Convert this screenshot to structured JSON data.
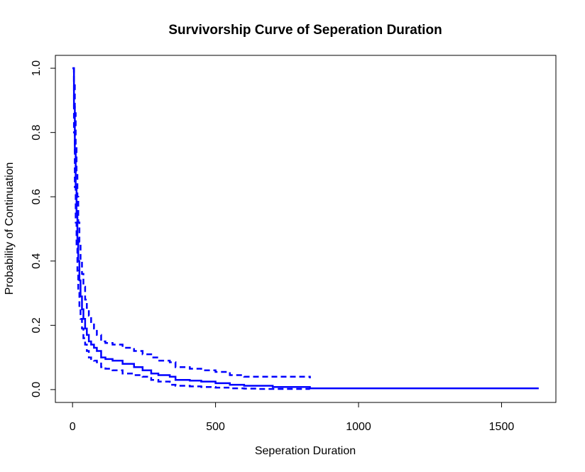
{
  "chart_data": {
    "type": "line",
    "title": "Survivorship Curve of Seperation Duration",
    "xlabel": "Seperation Duration",
    "ylabel": "Probability of Continuation",
    "xlim": [
      -60,
      1690
    ],
    "ylim": [
      -0.04,
      1.04
    ],
    "xticks": [
      0,
      500,
      1000,
      1500
    ],
    "yticks": [
      0.0,
      0.2,
      0.4,
      0.6,
      0.8,
      1.0
    ],
    "xtick_labels": [
      "0",
      "500",
      "1000",
      "1500"
    ],
    "ytick_labels": [
      "0.0",
      "0.2",
      "0.4",
      "0.6",
      "0.8",
      "1.0"
    ],
    "grid": false,
    "legend": "none",
    "color": "#0000ff",
    "series": [
      {
        "style": "solid",
        "step": true,
        "x": [
          0,
          5,
          8,
          11,
          14,
          17,
          20,
          24,
          28,
          33,
          38,
          44,
          50,
          57,
          65,
          75,
          85,
          100,
          115,
          140,
          175,
          215,
          245,
          275,
          300,
          340,
          360,
          410,
          450,
          500,
          550,
          600,
          650,
          700,
          830,
          1000,
          1630
        ],
        "y": [
          1.0,
          0.88,
          0.74,
          0.63,
          0.55,
          0.47,
          0.4,
          0.34,
          0.29,
          0.25,
          0.22,
          0.19,
          0.17,
          0.15,
          0.14,
          0.13,
          0.12,
          0.1,
          0.095,
          0.09,
          0.08,
          0.07,
          0.06,
          0.05,
          0.045,
          0.04,
          0.03,
          0.028,
          0.025,
          0.02,
          0.015,
          0.012,
          0.012,
          0.008,
          0.004,
          0.004,
          0.004
        ]
      },
      {
        "style": "dashed",
        "step": true,
        "x": [
          0,
          5,
          8,
          11,
          14,
          17,
          20,
          24,
          28,
          33,
          38,
          44,
          50,
          57,
          65,
          75,
          85,
          100,
          115,
          140,
          175,
          215,
          245,
          275,
          300,
          340,
          360,
          410,
          450,
          500,
          550,
          600,
          650,
          700,
          830
        ],
        "y": [
          1.0,
          0.96,
          0.86,
          0.76,
          0.68,
          0.6,
          0.52,
          0.46,
          0.4,
          0.36,
          0.32,
          0.28,
          0.25,
          0.23,
          0.21,
          0.19,
          0.17,
          0.15,
          0.145,
          0.14,
          0.13,
          0.12,
          0.11,
          0.1,
          0.09,
          0.085,
          0.07,
          0.065,
          0.06,
          0.055,
          0.045,
          0.04,
          0.04,
          0.04,
          0.035
        ]
      },
      {
        "style": "dashed",
        "step": true,
        "x": [
          0,
          5,
          8,
          11,
          14,
          17,
          20,
          24,
          28,
          33,
          38,
          44,
          50,
          57,
          65,
          75,
          85,
          100,
          115,
          140,
          175,
          215,
          245,
          275,
          300,
          340,
          360,
          410,
          450,
          500,
          550,
          600,
          650,
          700,
          830
        ],
        "y": [
          1.0,
          0.8,
          0.63,
          0.52,
          0.44,
          0.37,
          0.31,
          0.26,
          0.22,
          0.19,
          0.16,
          0.14,
          0.12,
          0.1,
          0.095,
          0.09,
          0.085,
          0.07,
          0.065,
          0.06,
          0.05,
          0.045,
          0.04,
          0.03,
          0.025,
          0.015,
          0.012,
          0.01,
          0.008,
          0.006,
          0.004,
          0.003,
          0.002,
          0.002,
          0.002
        ]
      }
    ]
  }
}
